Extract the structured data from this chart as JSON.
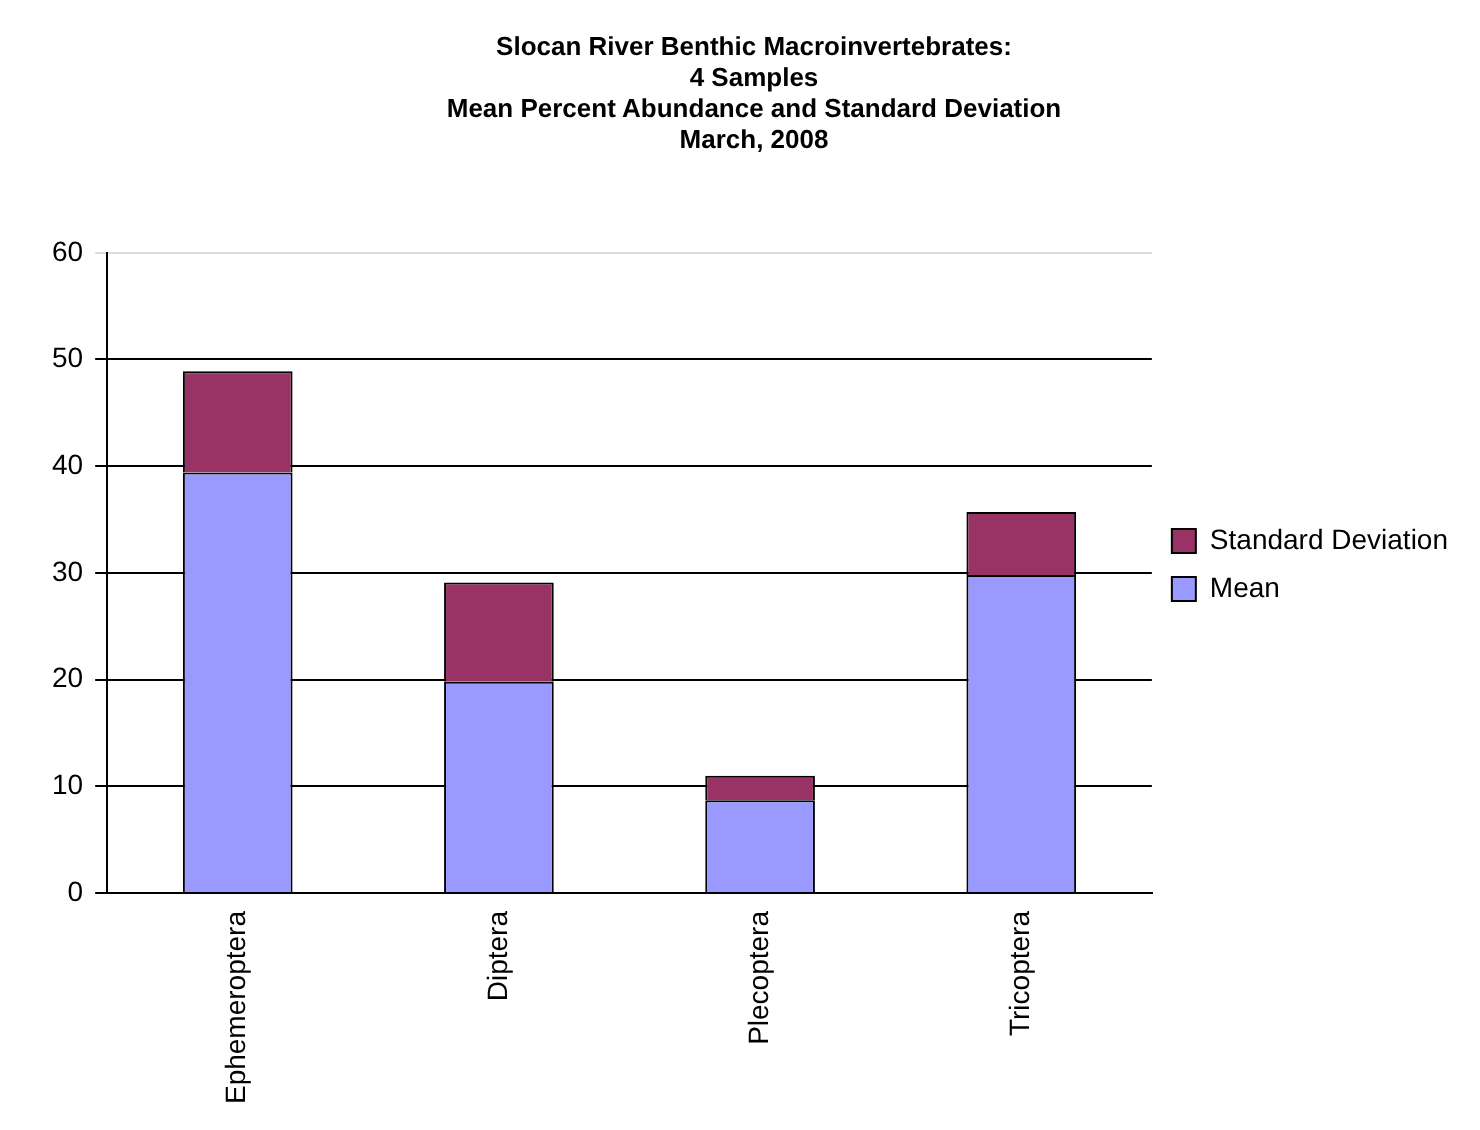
{
  "chart_data": {
    "type": "bar",
    "title": "Slocan River Benthic Macroinvertebrates:\n4 Samples\nMean Percent Abundance and Standard Deviation\nMarch, 2008",
    "categories": [
      "Ephemeroptera",
      "Diptera",
      "Plecoptera",
      "Tricoptera"
    ],
    "series": [
      {
        "name": "Mean",
        "color": "#9999ff",
        "values": [
          39.4,
          19.8,
          8.7,
          29.8
        ]
      },
      {
        "name": "Standard Deviation",
        "color": "#993366",
        "values": [
          9.5,
          9.3,
          2.3,
          5.9
        ]
      }
    ],
    "stacked": true,
    "ylim": [
      0,
      60
    ],
    "yticks": [
      0,
      10,
      20,
      30,
      40,
      50,
      60
    ],
    "grid": "y",
    "legend": "right"
  }
}
